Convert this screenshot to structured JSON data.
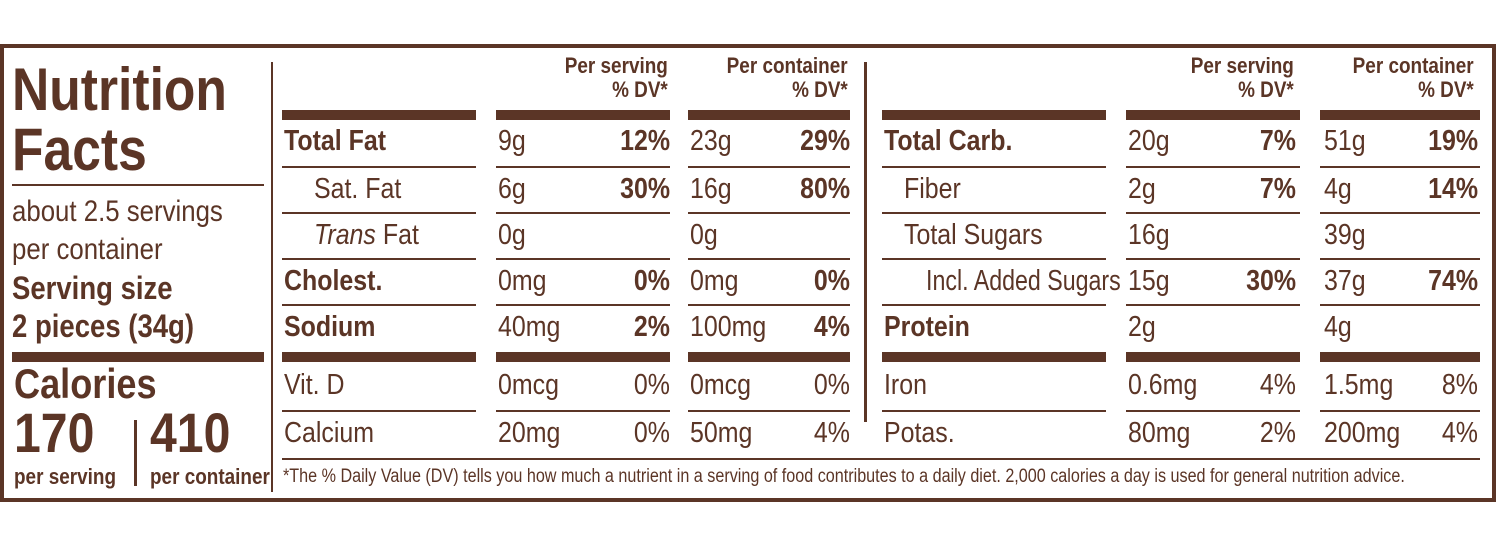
{
  "title_line1": "Nutrition",
  "title_line2": "Facts",
  "servings_line1": "about 2.5 servings",
  "servings_line2": "per container",
  "serving_size_label": "Serving size",
  "serving_size_value": "2 pieces (34g)",
  "calories": {
    "label": "Calories",
    "per_serving": "170",
    "per_serving_label": "per serving",
    "per_container": "410",
    "per_container_label": "per container"
  },
  "headers": {
    "per_serving": "Per serving",
    "per_container": "Per container",
    "dv": "% DV*"
  },
  "left_rows": [
    {
      "name": "Total Fat",
      "bold": true,
      "italic_prefix": "",
      "serv_amt": "9g",
      "serv_dv": "12%",
      "cont_amt": "23g",
      "cont_dv": "29%"
    },
    {
      "name": "Sat. Fat",
      "bold": false,
      "italic_prefix": "",
      "serv_amt": "6g",
      "serv_dv": "30%",
      "cont_amt": "16g",
      "cont_dv": "80%"
    },
    {
      "name": " Fat",
      "bold": false,
      "italic_prefix": "Trans",
      "serv_amt": "0g",
      "serv_dv": "",
      "cont_amt": "0g",
      "cont_dv": ""
    },
    {
      "name": "Cholest.",
      "bold": true,
      "italic_prefix": "",
      "serv_amt": "0mg",
      "serv_dv": "0%",
      "cont_amt": "0mg",
      "cont_dv": "0%"
    },
    {
      "name": "Sodium",
      "bold": true,
      "italic_prefix": "",
      "serv_amt": "40mg",
      "serv_dv": "2%",
      "cont_amt": "100mg",
      "cont_dv": "4%"
    }
  ],
  "left_vitamins": [
    {
      "name": "Vit. D",
      "serv_amt": "0mcg",
      "serv_dv": "0%",
      "cont_amt": "0mcg",
      "cont_dv": "0%"
    },
    {
      "name": "Calcium",
      "serv_amt": "20mg",
      "serv_dv": "0%",
      "cont_amt": "50mg",
      "cont_dv": "4%"
    }
  ],
  "right_rows": [
    {
      "name": "Total Carb.",
      "bold": true,
      "serv_amt": "20g",
      "serv_dv": "7%",
      "cont_amt": "51g",
      "cont_dv": "19%"
    },
    {
      "name": "Fiber",
      "bold": false,
      "serv_amt": "2g",
      "serv_dv": "7%",
      "cont_amt": "4g",
      "cont_dv": "14%"
    },
    {
      "name": "Total Sugars",
      "bold": false,
      "serv_amt": "16g",
      "serv_dv": "",
      "cont_amt": "39g",
      "cont_dv": ""
    },
    {
      "name": "Incl. Added Sugars",
      "bold": false,
      "serv_amt": "15g",
      "serv_dv": "30%",
      "cont_amt": "37g",
      "cont_dv": "74%"
    },
    {
      "name": "Protein",
      "bold": true,
      "serv_amt": "2g",
      "serv_dv": "",
      "cont_amt": "4g",
      "cont_dv": ""
    }
  ],
  "right_minerals": [
    {
      "name": "Iron",
      "serv_amt": "0.6mg",
      "serv_dv": "4%",
      "cont_amt": "1.5mg",
      "cont_dv": "8%"
    },
    {
      "name": "Potas.",
      "serv_amt": "80mg",
      "serv_dv": "2%",
      "cont_amt": "200mg",
      "cont_dv": "4%"
    }
  ],
  "footnote": "*The % Daily Value (DV) tells you how much a nutrient in a serving of food contributes to a daily diet. 2,000 calories a day is used for general nutrition advice.",
  "colors": {
    "ink": "#5b3526",
    "background": "#ffffff"
  }
}
